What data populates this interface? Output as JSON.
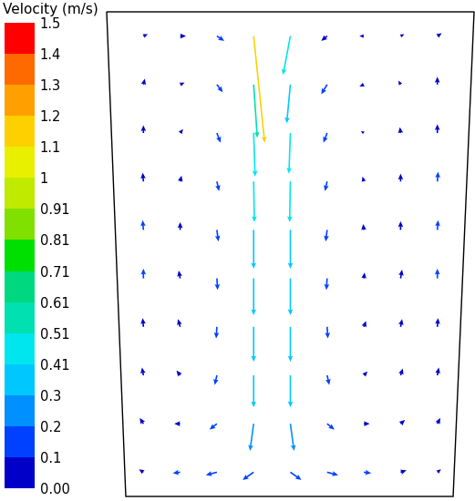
{
  "chart_data": {
    "type": "quiver",
    "tick_labels": false,
    "xlim": [
      0,
      1
    ],
    "ylim": [
      0,
      1
    ],
    "x": [
      0.1,
      0.2,
      0.3,
      0.4,
      0.5,
      0.6,
      0.7,
      0.8,
      0.9
    ],
    "y": [
      0.05,
      0.15,
      0.25,
      0.35,
      0.45,
      0.55,
      0.65,
      0.75,
      0.85,
      0.95
    ],
    "u": [
      [
        -0.06,
        -0.1,
        -0.15,
        -0.15,
        0.15,
        0.15,
        0.1,
        0.08,
        0.05
      ],
      [
        -0.05,
        -0.08,
        -0.1,
        -0.05,
        0.05,
        0.1,
        0.08,
        0.06,
        0.04
      ],
      [
        -0.02,
        -0.05,
        -0.03,
        0.0,
        0.0,
        0.03,
        0.05,
        0.03,
        0.02
      ],
      [
        -0.01,
        -0.03,
        -0.01,
        0.0,
        0.0,
        0.01,
        0.03,
        0.02,
        0.01
      ],
      [
        0.0,
        -0.02,
        0.01,
        0.0,
        0.0,
        -0.01,
        0.01,
        0.02,
        0.0
      ],
      [
        -0.01,
        0.0,
        0.02,
        0.0,
        0.0,
        -0.02,
        -0.01,
        0.0,
        0.01
      ],
      [
        -0.01,
        0.02,
        0.03,
        0.01,
        -0.01,
        -0.03,
        -0.02,
        0.0,
        0.01
      ],
      [
        0.0,
        0.04,
        0.05,
        0.02,
        -0.02,
        -0.05,
        -0.04,
        -0.01,
        0.0
      ],
      [
        0.02,
        0.06,
        0.08,
        0.05,
        -0.05,
        -0.08,
        -0.06,
        -0.03,
        0.0
      ],
      [
        0.06,
        0.08,
        0.1,
        0.15,
        -0.1,
        -0.08,
        -0.06,
        0.05,
        0.06
      ]
    ],
    "v": [
      [
        0.03,
        -0.01,
        -0.03,
        -0.08,
        -0.08,
        -0.03,
        -0.01,
        0.02,
        0.03
      ],
      [
        0.06,
        0.0,
        -0.06,
        -0.28,
        -0.28,
        -0.06,
        0.0,
        0.04,
        0.06
      ],
      [
        0.08,
        0.05,
        -0.1,
        -0.33,
        -0.33,
        -0.1,
        0.04,
        0.07,
        0.08
      ],
      [
        0.09,
        0.08,
        -0.12,
        -0.36,
        -0.36,
        -0.12,
        0.06,
        0.08,
        0.09
      ],
      [
        0.1,
        0.08,
        -0.12,
        -0.38,
        -0.38,
        -0.12,
        0.06,
        0.09,
        0.1
      ],
      [
        0.1,
        0.08,
        -0.12,
        -0.4,
        -0.4,
        -0.12,
        0.06,
        0.09,
        0.1
      ],
      [
        0.09,
        0.06,
        -0.1,
        -0.42,
        -0.42,
        -0.1,
        0.05,
        0.08,
        0.1
      ],
      [
        0.08,
        0.04,
        -0.1,
        -0.45,
        -0.42,
        -0.1,
        0.02,
        0.06,
        0.09
      ],
      [
        0.06,
        0.02,
        -0.08,
        -0.55,
        -0.4,
        -0.1,
        -0.02,
        0.04,
        0.08
      ],
      [
        0.02,
        0.0,
        -0.05,
        -1.1,
        -0.4,
        -0.05,
        0.0,
        0.02,
        0.03
      ]
    ],
    "colorbar": {
      "title": "Velocity (m/s)",
      "range": [
        0,
        1.5
      ],
      "ticks": [
        {
          "value": 0,
          "label": "0.00"
        },
        0.1,
        0.2,
        0.3,
        0.41,
        0.51,
        0.61,
        0.71,
        0.81,
        0.91,
        1,
        1.1,
        1.2,
        1.3,
        1.4,
        1.5
      ]
    }
  }
}
